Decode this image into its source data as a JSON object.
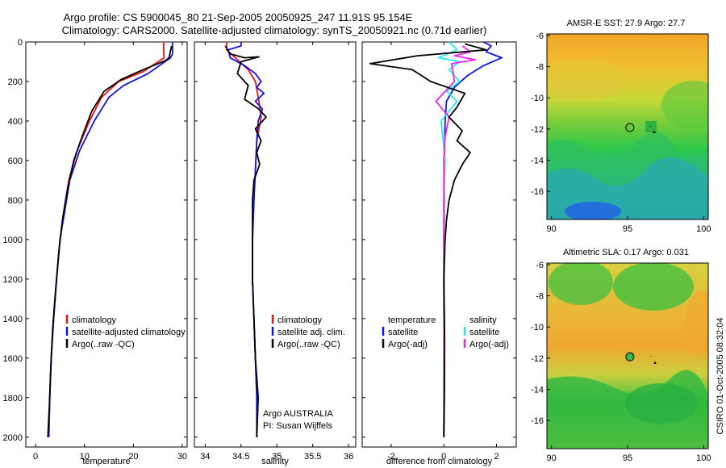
{
  "header": {
    "line1": "Argo profile: CS 5900045_80 21-Sep-2005 20050925_247 11.91S 95.154E",
    "line2": "Climatology: CARS2000. Satellite-adjusted climatology: synTS_20050921.nc (0.71d earlier)"
  },
  "depth_axis": {
    "ylim": [
      2050,
      0
    ],
    "ticks": [
      "0",
      "200",
      "400",
      "600",
      "800",
      "1000",
      "1200",
      "1400",
      "1600",
      "1800",
      "2000"
    ]
  },
  "colors": {
    "red": "#ee1111",
    "blue": "#1111ee",
    "black": "#000000",
    "cyan": "#22eeee",
    "magenta": "#ee22ee"
  },
  "chart_data": [
    {
      "type": "line",
      "name": "temperature",
      "xlabel": "temperature",
      "xlim": [
        -2,
        31
      ],
      "xticks": [
        "0",
        "10",
        "20",
        "30"
      ],
      "legend": [
        "climatology",
        "satellite-adjusted climatology",
        "Argo(..raw -QC)"
      ],
      "series": [
        {
          "name": "climatology",
          "color": "red",
          "points": [
            [
              26.2,
              0
            ],
            [
              26.2,
              50
            ],
            [
              26.3,
              80
            ],
            [
              22,
              150
            ],
            [
              17,
              200
            ],
            [
              13.5,
              280
            ],
            [
              11,
              400
            ],
            [
              8.5,
              550
            ],
            [
              6.8,
              700
            ],
            [
              5.8,
              850
            ],
            [
              5,
              1000
            ],
            [
              4.3,
              1200
            ],
            [
              3.7,
              1400
            ],
            [
              3.2,
              1600
            ],
            [
              2.9,
              1800
            ],
            [
              2.7,
              2000
            ]
          ]
        },
        {
          "name": "satellite-adjusted climatology",
          "color": "blue",
          "points": [
            [
              28,
              0
            ],
            [
              28,
              60
            ],
            [
              27.6,
              80
            ],
            [
              23,
              160
            ],
            [
              18,
              220
            ],
            [
              15,
              280
            ],
            [
              12,
              400
            ],
            [
              9,
              550
            ],
            [
              7,
              700
            ],
            [
              6,
              850
            ],
            [
              5,
              1000
            ],
            [
              4.3,
              1200
            ],
            [
              3.7,
              1400
            ],
            [
              3.2,
              1600
            ],
            [
              2.9,
              1800
            ],
            [
              2.7,
              2000
            ]
          ]
        },
        {
          "name": "Argo(..raw -QC)",
          "color": "black",
          "points": [
            [
              27.8,
              20
            ],
            [
              27.3,
              80
            ],
            [
              26.5,
              95
            ],
            [
              22,
              140
            ],
            [
              17.5,
              190
            ],
            [
              14,
              250
            ],
            [
              11.5,
              350
            ],
            [
              9.5,
              480
            ],
            [
              7.8,
              600
            ],
            [
              6.5,
              750
            ],
            [
              5.5,
              900
            ],
            [
              4.8,
              1050
            ],
            [
              4.1,
              1250
            ],
            [
              3.5,
              1450
            ],
            [
              3.1,
              1650
            ],
            [
              2.8,
              1850
            ],
            [
              2.5,
              2000
            ]
          ]
        }
      ]
    },
    {
      "type": "line",
      "name": "salinity",
      "xlabel": "salinity",
      "xlim": [
        33.85,
        36.1
      ],
      "xticks": [
        "34",
        "34.5",
        "35",
        "35.5",
        "36"
      ],
      "legend": [
        "climatology",
        "satellite adj. clim.",
        "Argo(..raw -QC)"
      ],
      "annotation": [
        "Argo AUSTRALIA",
        "PI: Susan Wijffels"
      ],
      "series": [
        {
          "name": "climatology",
          "color": "red",
          "points": [
            [
              34.3,
              0
            ],
            [
              34.3,
              40
            ],
            [
              34.45,
              90
            ],
            [
              34.6,
              140
            ],
            [
              34.7,
              200
            ],
            [
              34.75,
              300
            ],
            [
              34.78,
              380
            ],
            [
              34.72,
              500
            ],
            [
              34.7,
              650
            ],
            [
              34.68,
              800
            ],
            [
              34.66,
              1000
            ],
            [
              34.66,
              1200
            ],
            [
              34.68,
              1400
            ],
            [
              34.7,
              1600
            ],
            [
              34.72,
              1800
            ],
            [
              34.72,
              2000
            ]
          ]
        },
        {
          "name": "satellite adj. clim.",
          "color": "blue",
          "points": [
            [
              34.5,
              0
            ],
            [
              34.5,
              20
            ],
            [
              34.32,
              40
            ],
            [
              34.35,
              80
            ],
            [
              34.55,
              120
            ],
            [
              34.7,
              160
            ],
            [
              34.78,
              200
            ],
            [
              34.72,
              230
            ],
            [
              34.82,
              260
            ],
            [
              34.7,
              300
            ],
            [
              34.8,
              340
            ],
            [
              34.74,
              400
            ],
            [
              34.72,
              500
            ],
            [
              34.7,
              650
            ],
            [
              34.68,
              800
            ],
            [
              34.66,
              1000
            ],
            [
              34.66,
              1200
            ],
            [
              34.68,
              1400
            ],
            [
              34.7,
              1600
            ],
            [
              34.72,
              1800
            ],
            [
              34.72,
              2000
            ]
          ]
        },
        {
          "name": "Argo(..raw -QC)",
          "color": "black",
          "points": [
            [
              34.28,
              20
            ],
            [
              34.35,
              60
            ],
            [
              34.55,
              80
            ],
            [
              34.75,
              75
            ],
            [
              34.5,
              100
            ],
            [
              34.45,
              160
            ],
            [
              34.6,
              220
            ],
            [
              34.55,
              290
            ],
            [
              34.75,
              340
            ],
            [
              34.85,
              380
            ],
            [
              34.7,
              440
            ],
            [
              34.78,
              500
            ],
            [
              34.72,
              560
            ],
            [
              34.76,
              620
            ],
            [
              34.68,
              700
            ],
            [
              34.66,
              800
            ],
            [
              34.66,
              1000
            ],
            [
              34.66,
              1200
            ],
            [
              34.68,
              1400
            ],
            [
              34.7,
              1600
            ],
            [
              34.74,
              1800
            ],
            [
              34.72,
              2000
            ]
          ]
        }
      ]
    },
    {
      "type": "line",
      "name": "difference from climatology",
      "xlabel": "difference from climatology",
      "xlim": [
        -3.1,
        2.75
      ],
      "xticks": [
        "-2",
        "0",
        "2"
      ],
      "legend_temperature": [
        "temperature",
        "satellite",
        "Argo(-adj)"
      ],
      "legend_salinity": [
        "salinity",
        "satellite",
        "Argo(-adj)"
      ],
      "series": [
        {
          "name": "temperature satellite",
          "color": "blue",
          "points": [
            [
              1.5,
              0
            ],
            [
              1.8,
              20
            ],
            [
              1.6,
              50
            ],
            [
              2.2,
              80
            ],
            [
              1.5,
              120
            ],
            [
              0.9,
              170
            ],
            [
              0.4,
              230
            ],
            [
              0.1,
              300
            ],
            [
              0.05,
              400
            ],
            [
              0.02,
              600
            ],
            [
              0,
              1000
            ],
            [
              0,
              1500
            ],
            [
              0,
              2000
            ]
          ]
        },
        {
          "name": "salinity satellite",
          "color": "cyan",
          "points": [
            [
              0.2,
              0
            ],
            [
              0.5,
              40
            ],
            [
              -0.2,
              80
            ],
            [
              0.6,
              100
            ],
            [
              0.2,
              140
            ],
            [
              0.6,
              200
            ],
            [
              0.1,
              250
            ],
            [
              0.5,
              300
            ],
            [
              -0.1,
              400
            ],
            [
              0.05,
              600
            ],
            [
              0,
              800
            ],
            [
              0,
              1200
            ],
            [
              0,
              1600
            ],
            [
              0,
              2000
            ]
          ]
        },
        {
          "name": "salinity Argo(-adj)",
          "color": "magenta",
          "points": [
            [
              0.7,
              20
            ],
            [
              1.0,
              50
            ],
            [
              0.4,
              70
            ],
            [
              1.2,
              90
            ],
            [
              0.3,
              110
            ],
            [
              0.4,
              200
            ],
            [
              -0.3,
              300
            ],
            [
              0.2,
              380
            ],
            [
              0.05,
              480
            ],
            [
              0,
              600
            ],
            [
              0,
              1000
            ],
            [
              0.02,
              1500
            ],
            [
              0,
              2000
            ]
          ]
        },
        {
          "name": "temperature Argo(-adj)",
          "color": "black",
          "points": [
            [
              0.8,
              10
            ],
            [
              1.6,
              40
            ],
            [
              -1.0,
              70
            ],
            [
              -2.8,
              110
            ],
            [
              -1.2,
              140
            ],
            [
              -0.5,
              200
            ],
            [
              0.8,
              260
            ],
            [
              0.5,
              330
            ],
            [
              0.2,
              380
            ],
            [
              0.7,
              450
            ],
            [
              0.5,
              500
            ],
            [
              1.0,
              560
            ],
            [
              0.7,
              620
            ],
            [
              0.4,
              700
            ],
            [
              0.2,
              800
            ],
            [
              0.1,
              900
            ],
            [
              0.05,
              1000
            ],
            [
              0,
              1200
            ],
            [
              0.03,
              1500
            ],
            [
              0.02,
              1800
            ],
            [
              0,
              2000
            ]
          ]
        }
      ]
    }
  ],
  "maps": [
    {
      "name": "sst",
      "title": "AMSR-E SST: 27.9 Argo: 27.7",
      "lon_ticks": [
        "90",
        "95",
        "100"
      ],
      "lat_ticks": [
        "-6",
        "-8",
        "-10",
        "-12",
        "-14",
        "-16"
      ],
      "marker": {
        "lon": 95.15,
        "lat": -11.91,
        "style": "open-circle"
      },
      "symbols": [
        {
          "lon": 96.75,
          "lat": -12.1,
          "glyph": "▲"
        },
        {
          "lon": 96.5,
          "lat": -11.8,
          "glyph": "·"
        }
      ]
    },
    {
      "name": "sla",
      "title": "Altimetric SLA: 0.17 Argo: 0.031",
      "lon_ticks": [
        "90",
        "95",
        "100"
      ],
      "lat_ticks": [
        "-6",
        "-8",
        "-10",
        "-12",
        "-14",
        "-16"
      ],
      "marker": {
        "lon": 95.15,
        "lat": -11.91,
        "style": "filled-circle"
      },
      "symbols": [
        {
          "lon": 96.8,
          "lat": -12.2,
          "glyph": "▲"
        },
        {
          "lon": 96.55,
          "lat": -11.85,
          "glyph": "·"
        }
      ]
    }
  ],
  "footer": {
    "credit": "CSIRO 01-Oct-2005 08:32:04"
  }
}
